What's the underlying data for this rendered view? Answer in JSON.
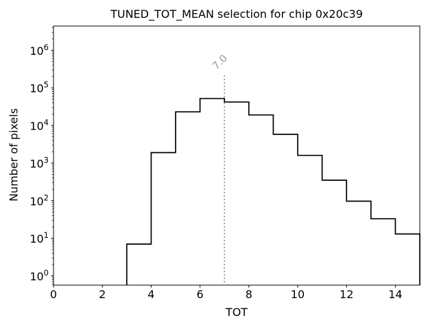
{
  "figure": {
    "background": "#ffffff"
  },
  "chart_data": {
    "type": "bar",
    "subtype": "step-histogram",
    "title": "TUNED_TOT_MEAN selection for chip 0x20c39",
    "xlabel": "TOT",
    "ylabel": "Number of pixels",
    "yscale": "log",
    "grid": false,
    "legend": "none",
    "xlim": [
      0,
      15
    ],
    "ylim": [
      0.567,
      4400000
    ],
    "x_ticks": [
      0,
      2,
      4,
      6,
      8,
      10,
      12,
      14
    ],
    "y_tick_exponents": [
      0,
      1,
      2,
      3,
      4,
      5,
      6
    ],
    "bin_edges": [
      3,
      4,
      5,
      6,
      7,
      8,
      9,
      10,
      11,
      12,
      13,
      14,
      15
    ],
    "counts": [
      7,
      1900,
      23000,
      52000,
      42000,
      19000,
      5800,
      1600,
      350,
      97,
      33,
      13
    ],
    "line_color": "#000000",
    "axis_color": "#000000",
    "annotation": {
      "label": "7.0",
      "x": 7.0,
      "line_style": "dotted",
      "line_color": "#8c8c8c",
      "text_color": "#999999"
    }
  }
}
